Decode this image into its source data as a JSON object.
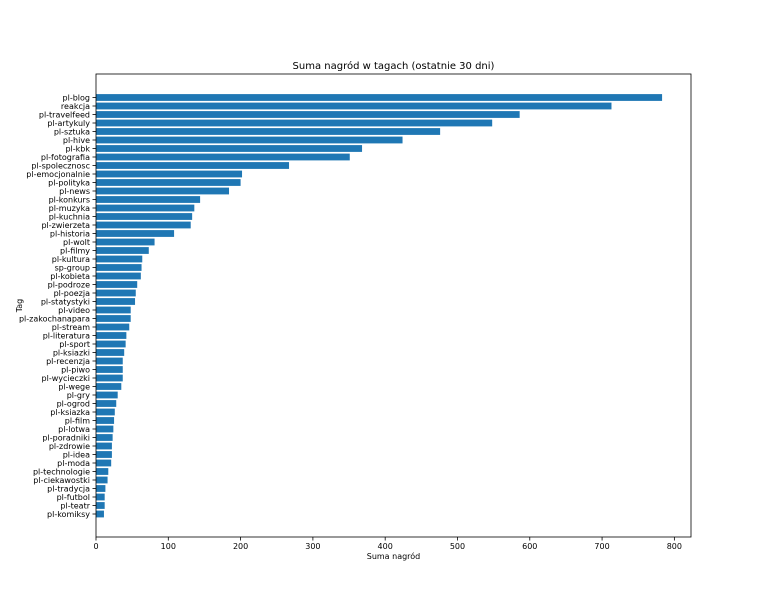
{
  "chart_data": {
    "type": "bar",
    "orientation": "horizontal",
    "title": "Suma nagród w tagach (ostatnie 30 dni)",
    "xlabel": "Suma nagród",
    "ylabel": "Tag",
    "xlim": [
      0,
      823
    ],
    "xticks": [
      0,
      100,
      200,
      300,
      400,
      500,
      600,
      700,
      800
    ],
    "grid": false,
    "bar_color": "#1f77b4",
    "categories": [
      "pl-blog",
      "reakcja",
      "pl-travelfeed",
      "pl-artykuly",
      "pl-sztuka",
      "pl-hive",
      "pl-kbk",
      "pl-fotografia",
      "pl-spolecznosc",
      "pl-emocjonalnie",
      "pl-polityka",
      "pl-news",
      "pl-konkurs",
      "pl-muzyka",
      "pl-kuchnia",
      "pl-zwierzeta",
      "pl-historia",
      "pl-wolt",
      "pl-filmy",
      "pl-kultura",
      "sp-group",
      "pl-kobieta",
      "pl-podroze",
      "pl-poezja",
      "pl-statystyki",
      "pl-video",
      "pl-zakochanapara",
      "pl-stream",
      "pl-literatura",
      "pl-sport",
      "pl-ksiazki",
      "pl-recenzja",
      "pl-piwo",
      "pl-wycieczki",
      "pl-wege",
      "pl-gry",
      "pl-ogrod",
      "pl-ksiazka",
      "pl-film",
      "pl-lotwa",
      "pl-poradniki",
      "pl-zdrowie",
      "pl-idea",
      "pl-moda",
      "pl-technologie",
      "pl-ciekawostki",
      "pl-tradycja",
      "pl-futbol",
      "pl-teatr",
      "pl-komiksy"
    ],
    "values": [
      783,
      713,
      586,
      548,
      476,
      424,
      368,
      351,
      267,
      202,
      200,
      184,
      144,
      136,
      133,
      131,
      108,
      81,
      73,
      64,
      63,
      62,
      57,
      55,
      54,
      48,
      48,
      46,
      42,
      41,
      39,
      37,
      37,
      37,
      35,
      30,
      28,
      26,
      25,
      24,
      23,
      22,
      22,
      21,
      17,
      16,
      13,
      12,
      12,
      11
    ]
  }
}
